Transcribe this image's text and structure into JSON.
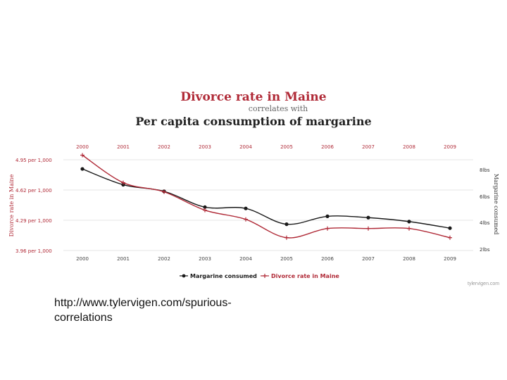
{
  "page": {
    "url_line1": "http://www.tylervigen.com/spurious-",
    "url_line2": "correlations",
    "credit": "tylervigen.com"
  },
  "chart_data": {
    "type": "line",
    "title": "Divorce rate in Maine",
    "subtitle": "correlates with",
    "title2": "Per capita consumption of margarine",
    "x": [
      "2000",
      "2001",
      "2002",
      "2003",
      "2004",
      "2005",
      "2006",
      "2007",
      "2008",
      "2009"
    ],
    "left_axis": {
      "label": "Divorce rate in Maine",
      "ticks": [
        "4.95 per 1,000",
        "4.62 per 1,000",
        "4.29 per 1,000",
        "3.96 per 1,000"
      ],
      "range": [
        3.96,
        4.95
      ]
    },
    "right_axis": {
      "label": "Margarine consumed",
      "ticks": [
        "8lbs",
        "6lbs",
        "4lbs",
        "2lbs"
      ],
      "range": [
        2,
        8.9
      ]
    },
    "series": [
      {
        "name": "Margarine consumed",
        "axis": "right",
        "color": "#1a1a1a",
        "values": [
          8.2,
          7.0,
          6.5,
          5.3,
          5.2,
          4.0,
          4.6,
          4.5,
          4.2,
          3.7
        ]
      },
      {
        "name": "Divorce rate in Maine",
        "axis": "left",
        "color": "#b02a37",
        "values": [
          5.0,
          4.7,
          4.6,
          4.4,
          4.3,
          4.1,
          4.2,
          4.2,
          4.2,
          4.1
        ]
      }
    ],
    "legend": [
      "Margarine consumed",
      "Divorce rate in Maine"
    ],
    "legend_position": "bottom"
  }
}
